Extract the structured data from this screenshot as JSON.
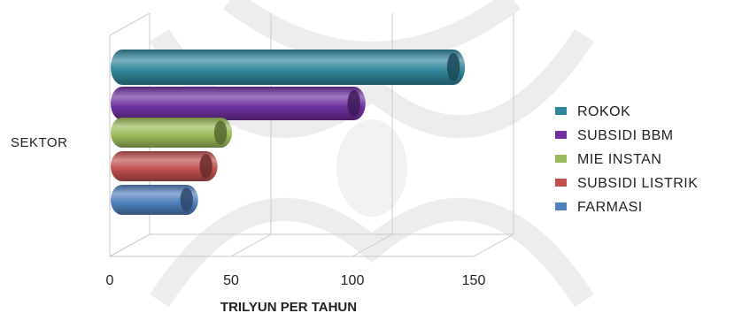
{
  "chart_data": {
    "type": "bar",
    "orientation": "horizontal",
    "style": "3d-cylinder",
    "title": "",
    "ylabel": "SEKTOR",
    "xlabel": "TRILYUN PER TAHUN",
    "category": "SEKTOR",
    "xlim": [
      0,
      150
    ],
    "xticks": [
      "0",
      "50",
      "100",
      "150"
    ],
    "grid": true,
    "legend_position": "right",
    "series": [
      {
        "name": "ROKOK",
        "value": 138,
        "color": "#31859c"
      },
      {
        "name": "SUBSIDI BBM",
        "value": 97,
        "color": "#7030a0"
      },
      {
        "name": "MIE INSTAN",
        "value": 42,
        "color": "#9bbb59"
      },
      {
        "name": "SUBSIDI LISTRIK",
        "value": 36,
        "color": "#c0504d"
      },
      {
        "name": "FARMASI",
        "value": 28,
        "color": "#4f81bd"
      }
    ]
  }
}
